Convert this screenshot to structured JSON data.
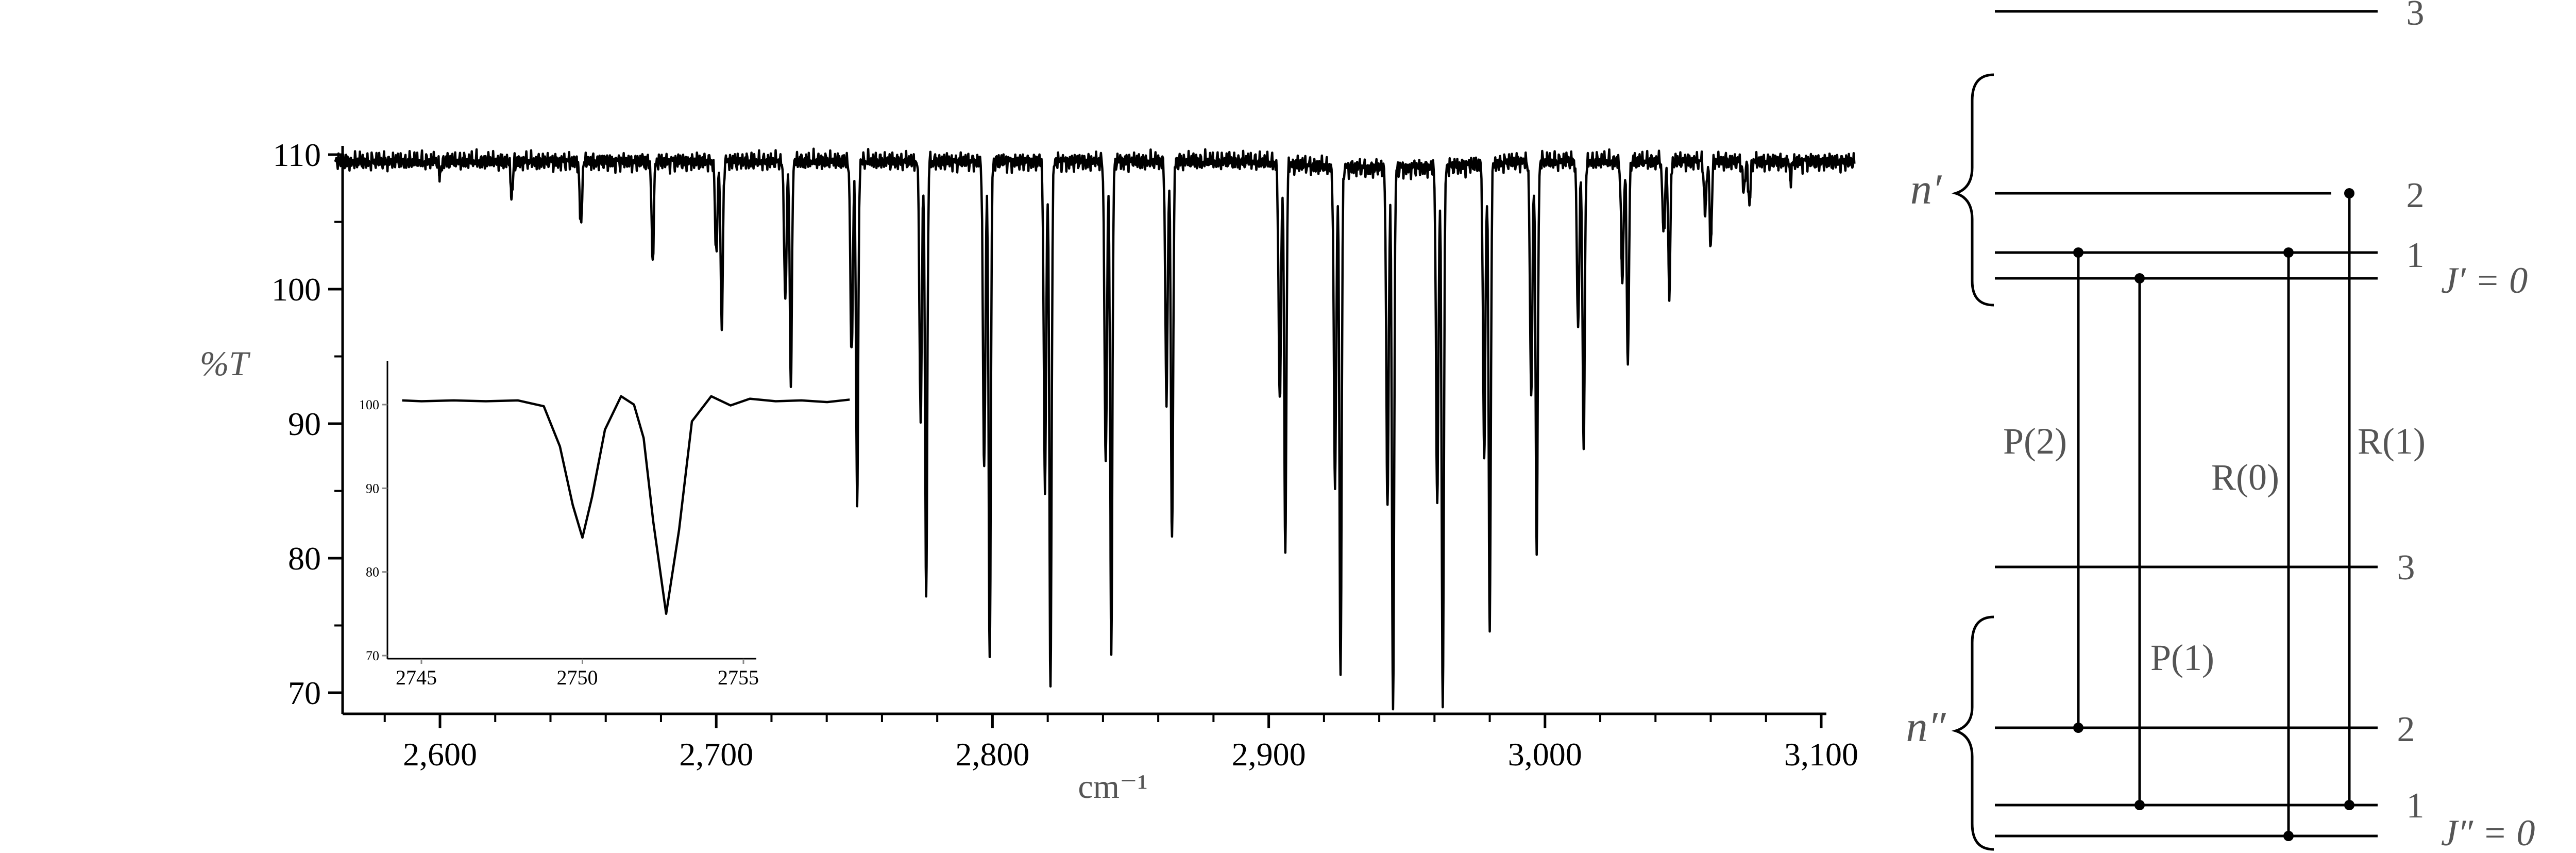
{
  "chart_data": [
    {
      "type": "line",
      "title": "",
      "xlabel": "cm⁻¹",
      "ylabel": "%T",
      "xlim": [
        2558,
        3113
      ],
      "ylim": [
        68,
        111
      ],
      "x_ticks": [
        2600,
        2700,
        2800,
        2900,
        3000,
        3100
      ],
      "x_tick_labels": [
        "2,600",
        "2,700",
        "2,800",
        "2,900",
        "3,000",
        "3,100"
      ],
      "y_ticks": [
        70,
        80,
        90,
        100,
        110
      ],
      "y_tick_labels": [
        "70",
        "80",
        "90",
        "100",
        "110"
      ],
      "grid": false,
      "baseline": 109.5,
      "series": [
        {
          "peaks": [
            {
              "x": 2600,
              "y": 108.5
            },
            {
              "x": 2626,
              "y": 106.8
            },
            {
              "x": 2651,
              "y": 104.6
            },
            {
              "x": 2677,
              "y": 102.0
            },
            {
              "x": 2702,
              "y": 97.1
            },
            {
              "x": 2727,
              "y": 93.0
            },
            {
              "x": 2751,
              "y": 84.2
            },
            {
              "x": 2776,
              "y": 77.3
            },
            {
              "x": 2799,
              "y": 72.2
            },
            {
              "x": 2821,
              "y": 70.1
            },
            {
              "x": 2843,
              "y": 73.1
            },
            {
              "x": 2865,
              "y": 81.0
            },
            {
              "x": 2906,
              "y": 80.7
            },
            {
              "x": 2926,
              "y": 71.3
            },
            {
              "x": 2945,
              "y": 68.9
            },
            {
              "x": 2963,
              "y": 69.0
            },
            {
              "x": 2980,
              "y": 75.1
            },
            {
              "x": 2997,
              "y": 80.8
            },
            {
              "x": 3014,
              "y": 88.1
            },
            {
              "x": 3030,
              "y": 94.3
            },
            {
              "x": 3045,
              "y": 99.7
            },
            {
              "x": 3060,
              "y": 103.1
            },
            {
              "x": 3074,
              "y": 106.2
            },
            {
              "x": 3089,
              "y": 108.2
            }
          ],
          "shoulders": [
            {
              "x": 2725,
              "y": 99.2
            },
            {
              "x": 2749,
              "y": 94.9
            },
            {
              "x": 2774,
              "y": 90.2
            },
            {
              "x": 2797,
              "y": 86.6
            },
            {
              "x": 2819,
              "y": 85.5
            },
            {
              "x": 2841,
              "y": 87.0
            },
            {
              "x": 2863,
              "y": 91.9
            },
            {
              "x": 2904,
              "y": 91.9
            },
            {
              "x": 2924,
              "y": 86.0
            },
            {
              "x": 2943,
              "y": 84.3
            },
            {
              "x": 2961,
              "y": 84.6
            },
            {
              "x": 2978,
              "y": 87.9
            },
            {
              "x": 2995,
              "y": 92.1
            },
            {
              "x": 3012,
              "y": 97.1
            },
            {
              "x": 3028,
              "y": 100.6
            },
            {
              "x": 3043,
              "y": 104.1
            },
            {
              "x": 3058,
              "y": 105.8
            },
            {
              "x": 3072,
              "y": 107.3
            },
            {
              "x": 2700,
              "y": 102.6
            }
          ]
        }
      ]
    },
    {
      "type": "line",
      "title": "",
      "xlim": [
        2744,
        2758
      ],
      "ylim": [
        70,
        103
      ],
      "x_ticks": [
        2745,
        2750,
        2755
      ],
      "x_tick_labels": [
        "2745",
        "2750",
        "2755"
      ],
      "y_ticks": [
        70,
        80,
        90,
        100
      ],
      "y_tick_labels": [
        "70",
        "80",
        "90",
        "100"
      ],
      "series": [
        {
          "x": [
            2744.4,
            2745,
            2746,
            2747,
            2748,
            2748.8,
            2749.3,
            2749.7,
            2750,
            2750.3,
            2750.7,
            2751.2,
            2751.6,
            2751.9,
            2752.2,
            2752.6,
            2753,
            2753.4,
            2754,
            2754.6,
            2755.2,
            2756,
            2756.8,
            2757.6,
            2758.3
          ],
          "y": [
            100.5,
            100.4,
            100.5,
            100.4,
            100.5,
            99.8,
            95.0,
            88.0,
            84.1,
            89.0,
            97.0,
            101.0,
            100.0,
            96.0,
            86.0,
            75.0,
            85.0,
            98.0,
            101.0,
            99.9,
            100.7,
            100.4,
            100.5,
            100.3,
            100.6
          ]
        }
      ]
    },
    {
      "type": "diagram",
      "upper_state_label": "n′",
      "lower_state_label": "n″",
      "upper_levels": [
        "3",
        "2",
        "1",
        "J′ = 0"
      ],
      "lower_levels": [
        "3",
        "2",
        "1",
        "J″ = 0"
      ],
      "transitions": [
        {
          "label": "P(2)",
          "from": "J″=2",
          "to": "J′=1"
        },
        {
          "label": "P(1)",
          "from": "J″=1",
          "to": "J′=0"
        },
        {
          "label": "R(0)",
          "from": "J″=0",
          "to": "J′=1"
        },
        {
          "label": "R(1)",
          "from": "J″=1",
          "to": "J′=2"
        }
      ]
    }
  ]
}
